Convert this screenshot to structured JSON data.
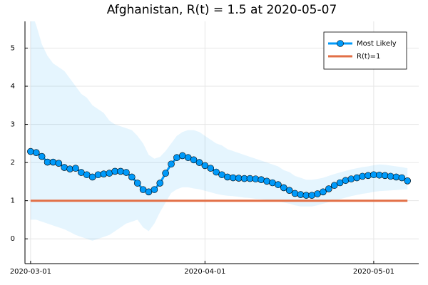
{
  "chart_data": {
    "type": "line",
    "title": "Afghanistan, R(t) = 1.5 at 2020-05-07",
    "x": [
      "2020-03-01",
      "2020-03-02",
      "2020-03-03",
      "2020-03-04",
      "2020-03-05",
      "2020-03-06",
      "2020-03-07",
      "2020-03-08",
      "2020-03-09",
      "2020-03-10",
      "2020-03-11",
      "2020-03-12",
      "2020-03-13",
      "2020-03-14",
      "2020-03-15",
      "2020-03-16",
      "2020-03-17",
      "2020-03-18",
      "2020-03-19",
      "2020-03-20",
      "2020-03-21",
      "2020-03-22",
      "2020-03-23",
      "2020-03-24",
      "2020-03-25",
      "2020-03-26",
      "2020-03-27",
      "2020-03-28",
      "2020-03-29",
      "2020-03-30",
      "2020-03-31",
      "2020-04-01",
      "2020-04-02",
      "2020-04-03",
      "2020-04-04",
      "2020-04-05",
      "2020-04-06",
      "2020-04-07",
      "2020-04-08",
      "2020-04-09",
      "2020-04-10",
      "2020-04-11",
      "2020-04-12",
      "2020-04-13",
      "2020-04-14",
      "2020-04-15",
      "2020-04-16",
      "2020-04-17",
      "2020-04-18",
      "2020-04-19",
      "2020-04-20",
      "2020-04-21",
      "2020-04-22",
      "2020-04-23",
      "2020-04-24",
      "2020-04-25",
      "2020-04-26",
      "2020-04-27",
      "2020-04-28",
      "2020-04-29",
      "2020-04-30",
      "2020-05-01",
      "2020-05-02",
      "2020-05-03",
      "2020-05-04",
      "2020-05-05",
      "2020-05-06",
      "2020-05-07"
    ],
    "band": {
      "color": "#009afa",
      "upper": [
        6.0,
        5.6,
        5.1,
        4.8,
        4.6,
        4.5,
        4.4,
        4.2,
        4.0,
        3.8,
        3.7,
        3.5,
        3.4,
        3.3,
        3.1,
        3.0,
        2.95,
        2.9,
        2.85,
        2.7,
        2.5,
        2.2,
        2.1,
        2.15,
        2.3,
        2.5,
        2.7,
        2.8,
        2.85,
        2.85,
        2.8,
        2.7,
        2.6,
        2.5,
        2.45,
        2.35,
        2.3,
        2.25,
        2.2,
        2.15,
        2.1,
        2.05,
        2.0,
        1.95,
        1.9,
        1.8,
        1.75,
        1.65,
        1.6,
        1.55,
        1.55,
        1.57,
        1.6,
        1.65,
        1.7,
        1.74,
        1.78,
        1.82,
        1.85,
        1.88,
        1.9,
        1.93,
        1.95,
        1.94,
        1.92,
        1.9,
        1.88,
        1.85
      ],
      "lower": [
        0.5,
        0.5,
        0.45,
        0.4,
        0.35,
        0.3,
        0.25,
        0.18,
        0.1,
        0.05,
        0,
        -0.05,
        0,
        0.05,
        0.1,
        0.2,
        0.3,
        0.4,
        0.45,
        0.5,
        0.3,
        0.2,
        0.4,
        0.7,
        0.95,
        1.2,
        1.3,
        1.35,
        1.35,
        1.32,
        1.3,
        1.26,
        1.22,
        1.18,
        1.15,
        1.13,
        1.12,
        1.1,
        1.08,
        1.07,
        1.05,
        1.04,
        1.02,
        1.0,
        0.98,
        0.95,
        0.92,
        0.88,
        0.85,
        0.85,
        0.85,
        0.88,
        0.92,
        0.96,
        1.0,
        1.04,
        1.08,
        1.12,
        1.15,
        1.18,
        1.2,
        1.23,
        1.25,
        1.26,
        1.27,
        1.28,
        1.29,
        1.3
      ]
    },
    "series": [
      {
        "name": "Most Likely",
        "color": "#009afa",
        "markers": true,
        "values": [
          2.29,
          2.26,
          2.16,
          2.01,
          2.01,
          1.98,
          1.87,
          1.83,
          1.85,
          1.74,
          1.68,
          1.62,
          1.68,
          1.7,
          1.72,
          1.77,
          1.77,
          1.74,
          1.62,
          1.46,
          1.29,
          1.23,
          1.29,
          1.46,
          1.72,
          1.96,
          2.13,
          2.18,
          2.13,
          2.07,
          2.0,
          1.92,
          1.85,
          1.75,
          1.68,
          1.62,
          1.6,
          1.59,
          1.58,
          1.58,
          1.57,
          1.55,
          1.51,
          1.47,
          1.42,
          1.34,
          1.27,
          1.19,
          1.16,
          1.14,
          1.14,
          1.18,
          1.23,
          1.31,
          1.4,
          1.47,
          1.53,
          1.57,
          1.6,
          1.64,
          1.66,
          1.68,
          1.67,
          1.66,
          1.64,
          1.62,
          1.6,
          1.52
        ]
      },
      {
        "name": "R(t)=1",
        "color": "#e26f46",
        "markers": false,
        "values": [
          1,
          1,
          1,
          1,
          1,
          1,
          1,
          1,
          1,
          1,
          1,
          1,
          1,
          1,
          1,
          1,
          1,
          1,
          1,
          1,
          1,
          1,
          1,
          1,
          1,
          1,
          1,
          1,
          1,
          1,
          1,
          1,
          1,
          1,
          1,
          1,
          1,
          1,
          1,
          1,
          1,
          1,
          1,
          1,
          1,
          1,
          1,
          1,
          1,
          1,
          1,
          1,
          1,
          1,
          1,
          1,
          1,
          1,
          1,
          1,
          1,
          1,
          1,
          1,
          1,
          1,
          1,
          1
        ]
      }
    ],
    "xlim": [
      "2020-02-29",
      "2020-05-09"
    ],
    "xticks": [
      "2020-03-01",
      "2020-04-01",
      "2020-05-01"
    ],
    "ylim": [
      -0.65,
      5.7
    ],
    "yticks": [
      0,
      1,
      2,
      3,
      4,
      5
    ],
    "grid": true,
    "legend": "top-right"
  }
}
